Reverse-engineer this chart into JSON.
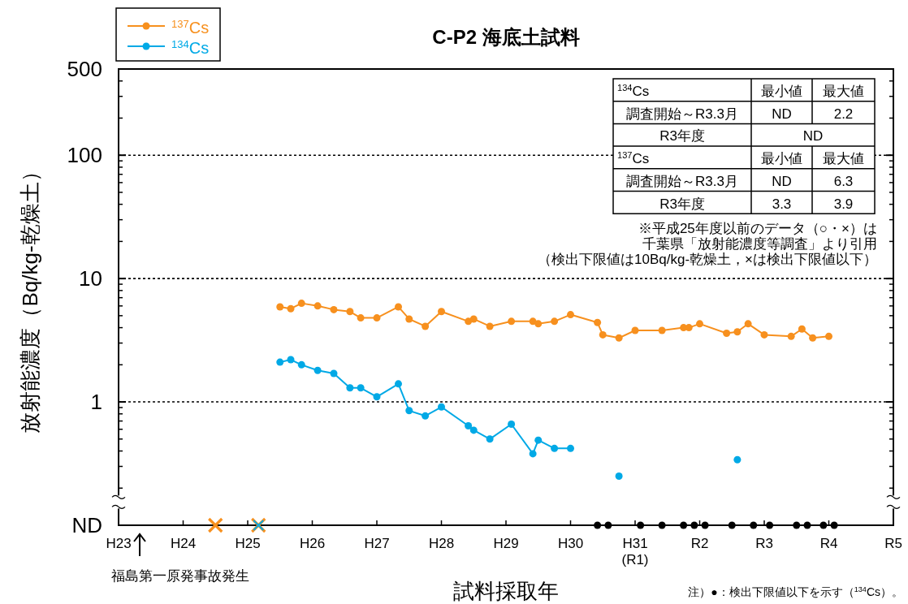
{
  "chart_data": [
    {
      "type": "line",
      "title": "C-P2 海底土試料",
      "xlabel": "試料採取年",
      "ylabel": "放射能濃度（Bq/kg-乾燥土）",
      "log": "y",
      "legend": "top left",
      "marker": "circle",
      "line_style": "solid",
      "xlim": [
        "2011-01",
        "2023-01"
      ],
      "xticks": [
        {
          "value": "2011-01",
          "label": "H23"
        },
        {
          "value": "2012-01",
          "label": "H24"
        },
        {
          "value": "2013-01",
          "label": "H25"
        },
        {
          "value": "2014-01",
          "label": "H26"
        },
        {
          "value": "2015-01",
          "label": "H27"
        },
        {
          "value": "2016-01",
          "label": "H28"
        },
        {
          "value": "2017-01",
          "label": "H29"
        },
        {
          "value": "2018-01",
          "label": "H30"
        },
        {
          "value": "2019-01",
          "label": "H31\n(R1)"
        },
        {
          "value": "2020-01",
          "label": "R2"
        },
        {
          "value": "2021-01",
          "label": "R3"
        },
        {
          "value": "2022-01",
          "label": "R4"
        },
        {
          "value": "2023-01",
          "label": "R5"
        }
      ],
      "ylim": [
        0.1,
        500
      ],
      "yticks": [
        {
          "value": 0.1,
          "label": "ND"
        },
        1,
        10,
        100,
        500
      ],
      "ref_lines": [
        {
          "axis": "y",
          "value": 1,
          "line_style": "dotted",
          "color": "#000000"
        },
        {
          "axis": "y",
          "value": 10,
          "line_style": "dotted",
          "color": "#000000"
        },
        {
          "axis": "y",
          "value": 100,
          "line_style": "dotted",
          "color": "#000000"
        }
      ],
      "annotations": [
        "福島第一原発事故発生",
        "※平成25年度以前のデータ（○・×）は",
        "千葉県「放射能濃度等調査」より引用",
        "（検出下限値は10Bq/kg-乾燥土，×は検出下限値以下）",
        "注）●：検出下限値以下を示す（$^{134}$Cs）。"
      ],
      "series": [
        {
          "name": "$^{137}$Cs",
          "color": "#f7901e",
          "x": [
            "2013-07",
            "2013-09",
            "2013-11",
            "2014-02",
            "2014-05",
            "2014-08",
            "2014-10",
            "2015-01",
            "2015-05",
            "2015-07",
            "2015-10",
            "2016-01",
            "2016-06",
            "2016-07",
            "2016-10",
            "2017-02",
            "2017-06",
            "2017-07",
            "2017-10",
            "2018-01",
            "2018-06",
            "2018-07",
            "2018-10",
            "2019-01",
            "2019-06",
            "2019-10",
            "2019-11",
            "2020-01",
            "2020-06",
            "2020-08",
            "2020-10",
            "2021-01",
            "2021-06",
            "2021-08",
            "2021-10",
            "2022-01"
          ],
          "values": [
            5.9,
            5.7,
            6.3,
            6.0,
            5.6,
            5.4,
            4.8,
            4.8,
            5.9,
            4.7,
            4.1,
            5.4,
            4.5,
            4.7,
            4.1,
            4.5,
            4.5,
            4.3,
            4.5,
            5.1,
            4.4,
            3.5,
            3.3,
            3.8,
            3.8,
            4.0,
            4.0,
            4.3,
            3.6,
            3.7,
            4.3,
            3.5,
            3.4,
            3.9,
            3.3,
            3.4
          ]
        },
        {
          "name": "$^{134}$Cs",
          "color": "#00a9e6",
          "x": [
            "2013-07",
            "2013-09",
            "2013-11",
            "2014-02",
            "2014-05",
            "2014-08",
            "2014-10",
            "2015-01",
            "2015-05",
            "2015-07",
            "2015-10",
            "2016-01",
            "2016-06",
            "2016-07",
            "2016-10",
            "2017-02",
            "2017-06",
            "2017-07",
            "2017-10",
            "2018-01"
          ],
          "values": [
            2.1,
            2.2,
            2.0,
            1.8,
            1.7,
            1.3,
            1.3,
            1.1,
            1.4,
            0.85,
            0.77,
            0.91,
            0.64,
            0.59,
            0.5,
            0.66,
            0.38,
            0.49,
            0.42,
            0.42
          ]
        },
        {
          "type": "scatter",
          "color": "#00a9e6",
          "marker": "circle",
          "x": [
            "2018-10",
            "2020-08"
          ],
          "values": [
            0.25,
            0.34
          ]
        },
        {
          "type": "scatter",
          "color": "#000000",
          "marker": "circle",
          "x": [
            "2018-06",
            "2018-08",
            "2019-02",
            "2019-06",
            "2019-10",
            "2019-12",
            "2020-02",
            "2020-07",
            "2020-11",
            "2021-02",
            "2021-07",
            "2021-09",
            "2021-12",
            "2022-02"
          ],
          "values": [
            0.1,
            0.1,
            0.1,
            0.1,
            0.1,
            0.1,
            0.1,
            0.1,
            0.1,
            0.1,
            0.1,
            0.1,
            0.1,
            0.1
          ]
        },
        {
          "type": "scatter",
          "color": "#f7901e",
          "marker": "cross",
          "x": [
            "2012-07",
            "2013-03"
          ],
          "values": [
            0.1,
            0.1
          ]
        },
        {
          "type": "scatter",
          "color": "#00a9e6",
          "marker": "cross",
          "x": [
            "2013-03"
          ],
          "values": [
            0.1
          ]
        }
      ]
    },
    {
      "type": "other",
      "categories": [
        "$^{134}$Cs",
        "調査開始～R3.3月",
        "R3年度",
        "$^{137}$Cs",
        "調査開始～R3.3月",
        "R3年度"
      ],
      "cell_labels": [
        [
          "最小値",
          "最大値"
        ],
        [
          "ND",
          "2.2"
        ],
        [
          "ND"
        ],
        [
          "最小値",
          "最大値"
        ],
        [
          "ND",
          "6.3"
        ],
        [
          "3.3",
          "3.9"
        ]
      ]
    }
  ]
}
